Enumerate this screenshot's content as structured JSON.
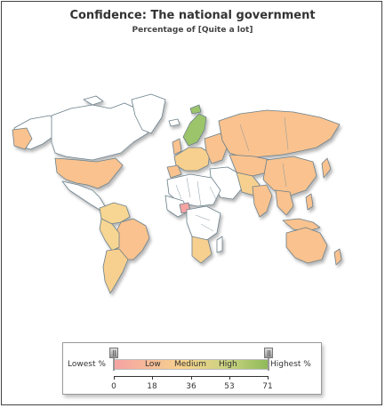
{
  "title": "Confidence: The national government",
  "subtitle": "Percentage of [Quite a lot]",
  "colors": {
    "low": "#f5a3a3",
    "medium": "#f7c98d",
    "high": "#8fba59",
    "no_data": "#ffffff",
    "border": "#6b7f8a"
  },
  "legend": {
    "lowest_label": "Lowest %",
    "highest_label": "Highest %",
    "low_label": "Low",
    "medium_label": "Medium",
    "high_label": "High",
    "ticks": [
      "0",
      "18",
      "36",
      "53",
      "71"
    ]
  }
}
